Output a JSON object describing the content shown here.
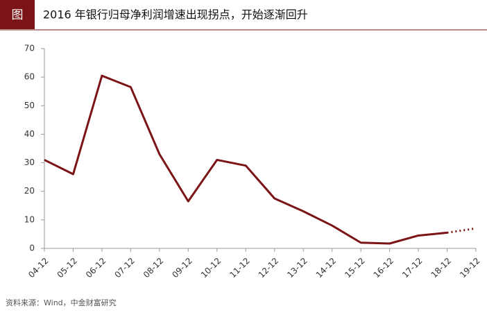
{
  "chart_data": {
    "type": "line",
    "badge": "图",
    "title": "2016 年银行归母净利润增速出现拐点，开始逐渐回升",
    "source": "资料来源：Wind，中金财富研究",
    "categories": [
      "04-12",
      "05-12",
      "06-12",
      "07-12",
      "08-12",
      "09-12",
      "10-12",
      "11-12",
      "12-12",
      "13-12",
      "14-12",
      "15-12",
      "16-12",
      "17-12",
      "18-12",
      "19-12"
    ],
    "series": [
      {
        "color": "#7b1416",
        "dashed": false,
        "values": [
          31,
          26,
          60.5,
          56.5,
          33,
          16.5,
          31,
          29,
          17.5,
          13,
          8,
          2,
          1.7,
          4.5,
          5.5,
          null
        ]
      },
      {
        "color": "#7b1416",
        "dashed": true,
        "values": [
          null,
          null,
          null,
          null,
          null,
          null,
          null,
          null,
          null,
          null,
          null,
          null,
          null,
          null,
          5.5,
          7
        ]
      }
    ],
    "ylim": [
      0,
      70
    ],
    "yticks": [
      0,
      10,
      20,
      30,
      40,
      50,
      60,
      70
    ],
    "grid": false
  }
}
